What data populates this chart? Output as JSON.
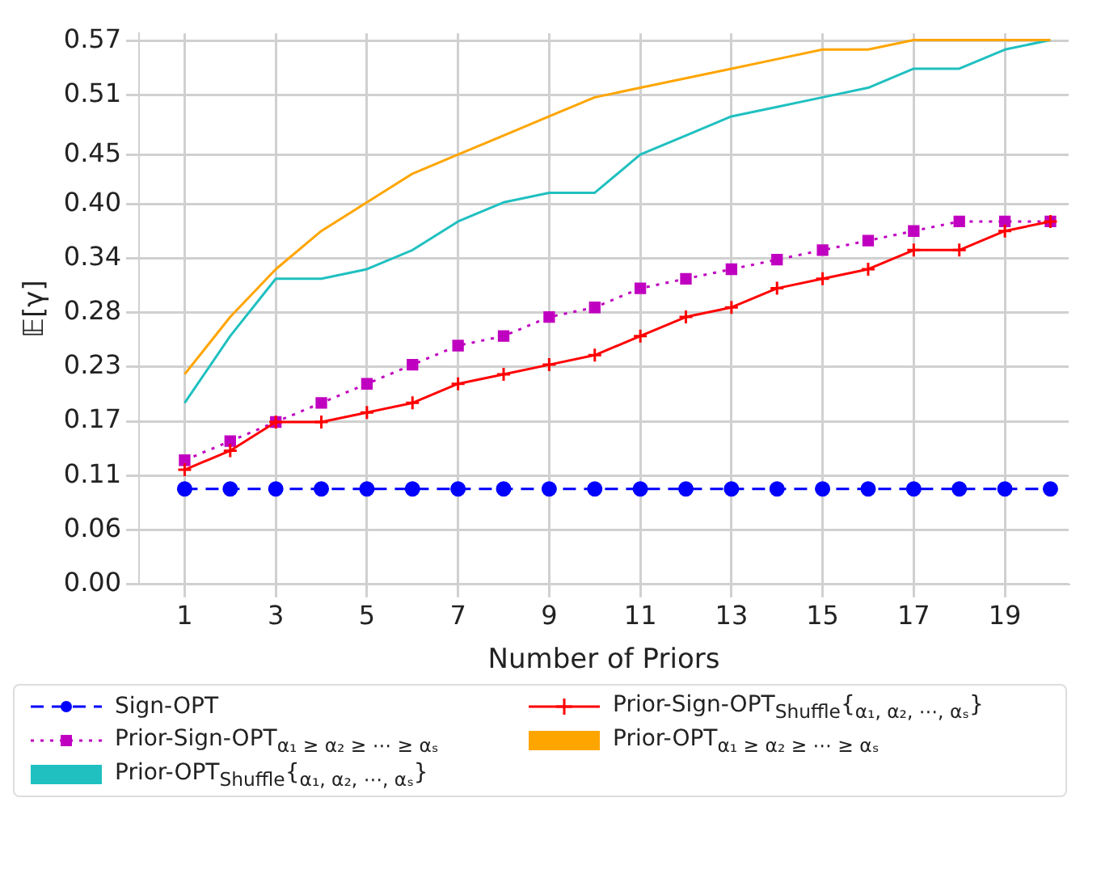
{
  "chart_data": {
    "type": "line",
    "xlabel": "Number of Priors",
    "ylabel": "𝔼[γ]",
    "x": [
      1,
      2,
      3,
      4,
      5,
      6,
      7,
      8,
      9,
      10,
      11,
      12,
      13,
      14,
      15,
      16,
      17,
      18,
      19,
      20
    ],
    "xlim": [
      0,
      20.4
    ],
    "xticks": [
      1,
      3,
      5,
      7,
      9,
      11,
      13,
      15,
      17,
      19
    ],
    "ylim": [
      0,
      0.577
    ],
    "yticks": [
      {
        "value": 0,
        "label": "0.00"
      },
      {
        "value": 0.0569,
        "label": "0.06"
      },
      {
        "value": 0.1138,
        "label": "0.11"
      },
      {
        "value": 0.1707,
        "label": "0.17"
      },
      {
        "value": 0.2276,
        "label": "0.23"
      },
      {
        "value": 0.2845,
        "label": "0.28"
      },
      {
        "value": 0.3414,
        "label": "0.34"
      },
      {
        "value": 0.3983,
        "label": "0.40"
      },
      {
        "value": 0.45,
        "label": "0.45"
      },
      {
        "value": 0.5121,
        "label": "0.51"
      },
      {
        "value": 0.569,
        "label": "0.57"
      }
    ],
    "grid": true,
    "legend": "bottom",
    "series": [
      {
        "name": "Sign-OPT",
        "color": "#0000ff",
        "marker": "circle",
        "line_style": "dashed",
        "values": [
          0.1,
          0.1,
          0.1,
          0.1,
          0.1,
          0.1,
          0.1,
          0.1,
          0.1,
          0.1,
          0.1,
          0.1,
          0.1,
          0.1,
          0.1,
          0.1,
          0.1,
          0.1,
          0.1,
          0.1
        ]
      },
      {
        "name": "Prior-Sign-OPT$_{Shuffle}${$_{α₁, α₂, ⋯, αₛ}$}",
        "color": "#ff0000",
        "marker": "cross",
        "line_style": "solid",
        "values": [
          0.12,
          0.14,
          0.17,
          0.17,
          0.18,
          0.19,
          0.21,
          0.22,
          0.23,
          0.24,
          0.26,
          0.28,
          0.29,
          0.31,
          0.32,
          0.33,
          0.35,
          0.35,
          0.37,
          0.38
        ]
      },
      {
        "name": "Prior-Sign-OPT$_{α₁ ≥ α₂ ≥ ⋯ ≥ αₛ}$",
        "color": "#c000c0",
        "marker": "square",
        "line_style": "dotted",
        "values": [
          0.13,
          0.15,
          0.17,
          0.19,
          0.21,
          0.23,
          0.25,
          0.26,
          0.28,
          0.29,
          0.31,
          0.32,
          0.33,
          0.34,
          0.35,
          0.36,
          0.37,
          0.38,
          0.38,
          0.38
        ]
      },
      {
        "name": "Prior-OPT$_{α₁ ≥ α₂ ≥ ⋯ ≥ αₛ}$",
        "color": "#ffa500",
        "marker": "none",
        "line_style": "solid",
        "values": [
          0.22,
          0.28,
          0.33,
          0.37,
          0.4,
          0.43,
          0.45,
          0.47,
          0.49,
          0.51,
          0.52,
          0.53,
          0.54,
          0.55,
          0.56,
          0.56,
          0.57,
          0.57,
          0.57,
          0.57
        ]
      },
      {
        "name": "Prior-OPT$_{Shuffle}${$_{α₁, α₂, ⋯, αₛ}$}",
        "color": "#20c0c0",
        "marker": "none",
        "line_style": "solid",
        "values": [
          0.19,
          0.26,
          0.32,
          0.32,
          0.33,
          0.35,
          0.38,
          0.4,
          0.41,
          0.41,
          0.45,
          0.47,
          0.49,
          0.5,
          0.51,
          0.52,
          0.54,
          0.54,
          0.56,
          0.57
        ]
      }
    ]
  }
}
